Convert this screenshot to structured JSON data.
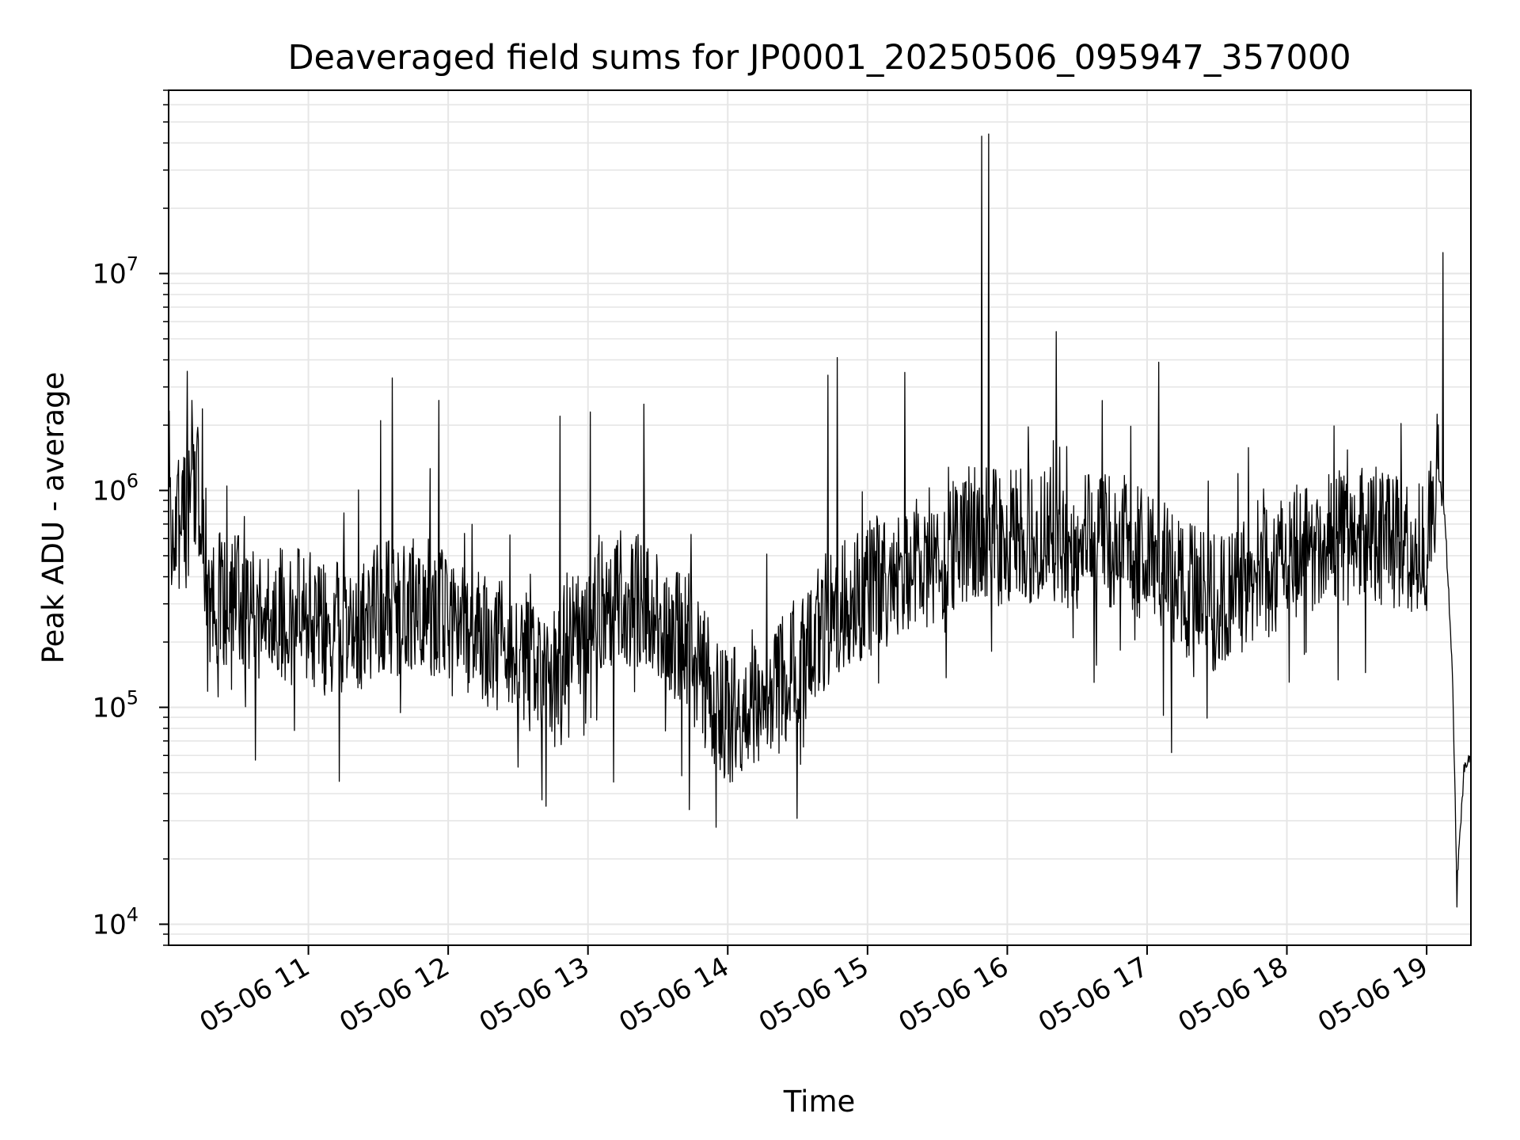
{
  "chart_data": {
    "type": "line",
    "title": "Deaveraged field sums for JP0001_20250506_095947_357000",
    "xlabel": "Time",
    "ylabel": "Peak ADU - average",
    "yscale": "log",
    "ylim": [
      8000,
      70000000
    ],
    "xlim": [
      "05-06 10:00",
      "05-06 19:19"
    ],
    "grid": true,
    "line_color": "#000000",
    "x_ticks": [
      "05-06 11",
      "05-06 12",
      "05-06 13",
      "05-06 14",
      "05-06 15",
      "05-06 16",
      "05-06 17",
      "05-06 18",
      "05-06 19"
    ],
    "y_ticks": [
      {
        "base": "10",
        "exp": "4",
        "value": 10000
      },
      {
        "base": "10",
        "exp": "5",
        "value": 100000
      },
      {
        "base": "10",
        "exp": "6",
        "value": 1000000
      },
      {
        "base": "10",
        "exp": "7",
        "value": 10000000
      }
    ],
    "series": [
      {
        "x": [
          "05-06 10:00",
          "05-06 10:06",
          "05-06 10:12",
          "05-06 10:18",
          "05-06 10:30",
          "05-06 10:45",
          "05-06 11:00",
          "05-06 11:15",
          "05-06 11:30",
          "05-06 11:45",
          "05-06 12:00",
          "05-06 12:15",
          "05-06 12:30",
          "05-06 12:45",
          "05-06 13:00",
          "05-06 13:15",
          "05-06 13:30",
          "05-06 13:45",
          "05-06 14:00",
          "05-06 14:15",
          "05-06 14:30",
          "05-06 14:45",
          "05-06 15:00",
          "05-06 15:15",
          "05-06 15:30",
          "05-06 15:45",
          "05-06 16:00",
          "05-06 16:15",
          "05-06 16:30",
          "05-06 16:45",
          "05-06 17:00",
          "05-06 17:15",
          "05-06 17:30",
          "05-06 17:45",
          "05-06 18:00",
          "05-06 18:15",
          "05-06 18:30",
          "05-06 18:45",
          "05-06 19:00",
          "05-06 19:05",
          "05-06 19:08",
          "05-06 19:11",
          "05-06 19:13",
          "05-06 19:16",
          "05-06 19:19"
        ],
        "y": [
          800000,
          650000,
          1200000,
          320000,
          300000,
          280000,
          250000,
          220000,
          280000,
          300000,
          270000,
          200000,
          170000,
          150000,
          250000,
          330000,
          280000,
          170000,
          90000,
          110000,
          160000,
          280000,
          350000,
          420000,
          520000,
          650000,
          600000,
          650000,
          550000,
          600000,
          500000,
          360000,
          300000,
          380000,
          500000,
          600000,
          620000,
          600000,
          550000,
          1200000,
          700000,
          150000,
          15000,
          50000,
          60000
        ],
        "spikes": [
          {
            "x": "05-06 10:10",
            "y": 2600000
          },
          {
            "x": "05-06 11:31",
            "y": 2100000
          },
          {
            "x": "05-06 11:36",
            "y": 3300000
          },
          {
            "x": "05-06 11:56",
            "y": 2600000
          },
          {
            "x": "05-06 12:48",
            "y": 2200000
          },
          {
            "x": "05-06 13:01",
            "y": 2300000
          },
          {
            "x": "05-06 13:24",
            "y": 2500000
          },
          {
            "x": "05-06 14:43",
            "y": 3400000
          },
          {
            "x": "05-06 14:47",
            "y": 4100000
          },
          {
            "x": "05-06 15:16",
            "y": 3500000
          },
          {
            "x": "05-06 15:49",
            "y": 43000000
          },
          {
            "x": "05-06 15:52",
            "y": 44000000
          },
          {
            "x": "05-06 16:21",
            "y": 5400000
          },
          {
            "x": "05-06 17:05",
            "y": 3900000
          },
          {
            "x": "05-06 19:07",
            "y": 12500000
          }
        ],
        "dips": [
          {
            "x": "05-06 12:42",
            "y": 35000
          },
          {
            "x": "05-06 13:55",
            "y": 28000
          },
          {
            "x": "05-06 19:13",
            "y": 12000
          }
        ]
      }
    ]
  }
}
